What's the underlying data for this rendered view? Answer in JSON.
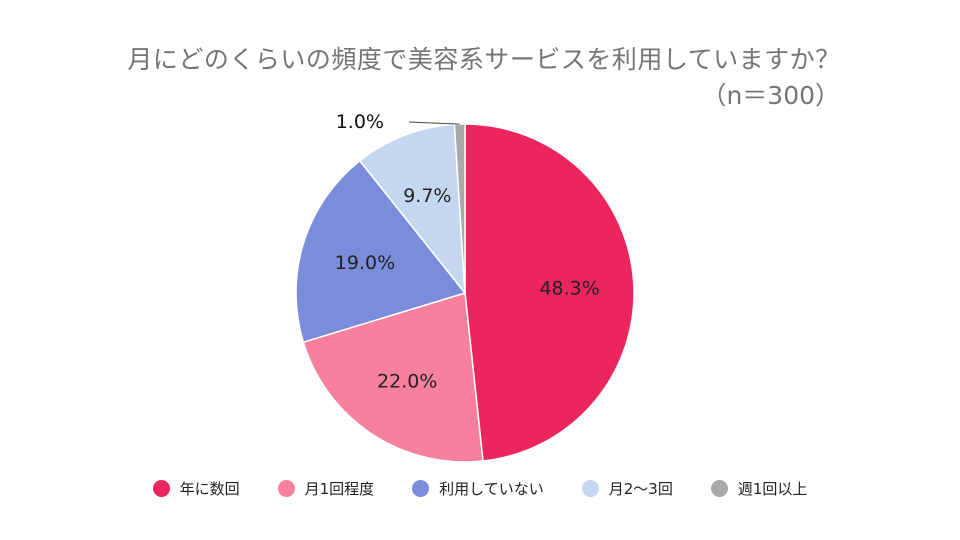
{
  "chart_data": {
    "type": "pie",
    "title": "月にどのくらいの頻度で美容系サービスを利用していますか？",
    "subtitle": "（n＝300）",
    "categories": [
      "年に数回",
      "月1回程度",
      "利用していない",
      "月2〜3回",
      "週1回以上"
    ],
    "values": [
      48.3,
      22.0,
      19.0,
      9.7,
      1.0
    ],
    "labels": [
      "48.3%",
      "22.0%",
      "19.0%",
      "9.7%",
      "1.0%"
    ],
    "colors": [
      "#EC255F",
      "#F8809F",
      "#7A8CDA",
      "#C5D6F0",
      "#A9A9A9"
    ],
    "start": "12 o'clock",
    "direction": "clockwise",
    "legend_position": "bottom"
  }
}
